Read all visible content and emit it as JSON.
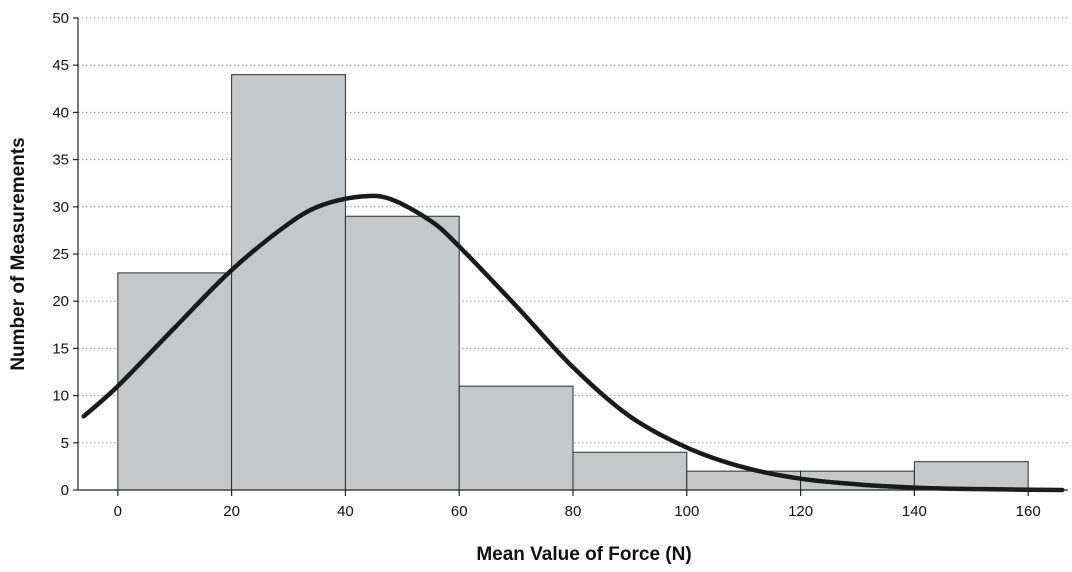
{
  "chart_data": {
    "type": "bar",
    "subtype": "histogram with fitted normal curve",
    "title": "",
    "xlabel": "Mean Value of Force (N)",
    "ylabel": "Number of Measurements",
    "xlim": [
      -7,
      167
    ],
    "ylim": [
      0,
      50
    ],
    "x_ticks": [
      0,
      20,
      40,
      60,
      80,
      100,
      120,
      140,
      160
    ],
    "y_ticks": [
      0,
      5,
      10,
      15,
      20,
      25,
      30,
      35,
      40,
      45,
      50
    ],
    "grid": "horizontal dotted lines at each y tick",
    "legend": "none",
    "bins": [
      {
        "from": 0,
        "to": 20,
        "count": 23
      },
      {
        "from": 20,
        "to": 40,
        "count": 44
      },
      {
        "from": 40,
        "to": 60,
        "count": 29
      },
      {
        "from": 60,
        "to": 80,
        "count": 11
      },
      {
        "from": 80,
        "to": 100,
        "count": 4
      },
      {
        "from": 100,
        "to": 120,
        "count": 2
      },
      {
        "from": 120,
        "to": 140,
        "count": 2
      },
      {
        "from": 140,
        "to": 160,
        "count": 3
      }
    ],
    "curve": {
      "type": "line",
      "points": [
        [
          -6,
          7.8
        ],
        [
          0,
          11.0
        ],
        [
          10,
          17.2
        ],
        [
          20,
          23.3
        ],
        [
          30,
          28.2
        ],
        [
          36,
          30.2
        ],
        [
          43,
          31.1
        ],
        [
          48,
          30.8
        ],
        [
          55,
          28.5
        ],
        [
          60,
          25.8
        ],
        [
          70,
          19.5
        ],
        [
          80,
          13.0
        ],
        [
          90,
          7.8
        ],
        [
          100,
          4.5
        ],
        [
          110,
          2.4
        ],
        [
          120,
          1.2
        ],
        [
          130,
          0.6
        ],
        [
          140,
          0.25
        ],
        [
          150,
          0.1
        ],
        [
          166,
          0.0
        ]
      ]
    },
    "colors": {
      "bar_fill": "#c6c7c9",
      "bar_stroke": "#2b2b2b",
      "curve": "#1a1a1a",
      "grid": "#9a9a9a",
      "axis": "#222222"
    }
  }
}
